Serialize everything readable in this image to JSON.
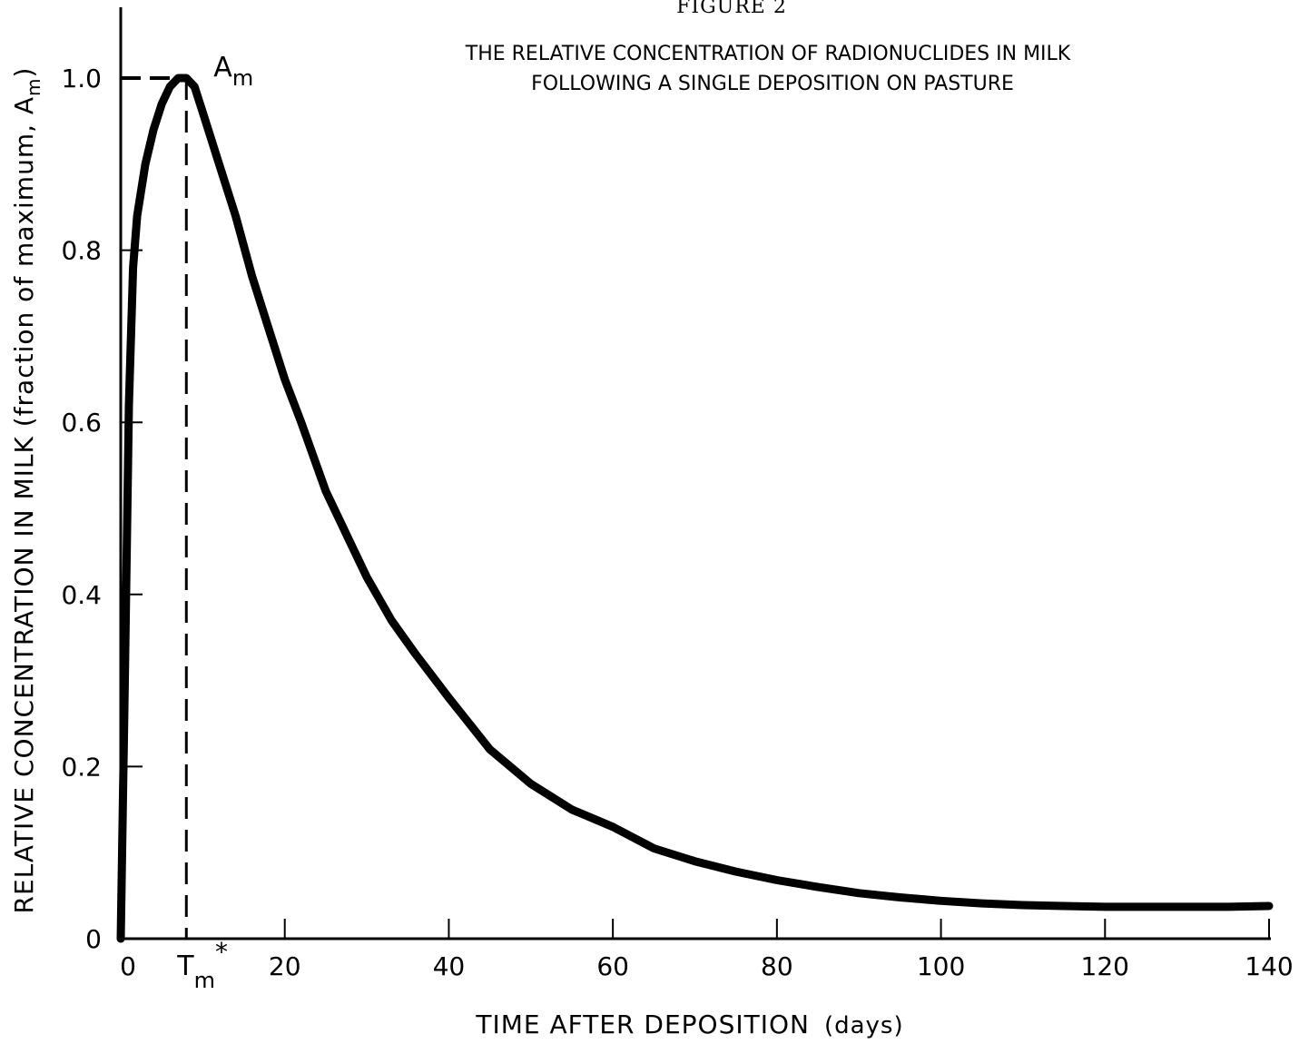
{
  "figure_label": "FIGURE 2",
  "chart_data": {
    "type": "line",
    "title_line1": "THE RELATIVE CONCENTRATION OF RADIONUCLIDES IN MILK",
    "title_line2": "FOLLOWING A SINGLE DEPOSITION ON PASTURE",
    "xlabel": "TIME AFTER DEPOSITION",
    "xlabel_unit": "(days)",
    "ylabel_main": "RELATIVE CONCENTRATION IN MILK (fraction of maximum, A",
    "ylabel_sub": "m",
    "ylabel_close": ")",
    "xlim": [
      0,
      140
    ],
    "ylim": [
      0,
      1.1
    ],
    "x_ticks": [
      0,
      20,
      40,
      60,
      80,
      100,
      120,
      140
    ],
    "x_tick_labels": [
      "0",
      "20",
      "40",
      "60",
      "80",
      "100",
      "120",
      "140"
    ],
    "y_ticks": [
      0,
      0.2,
      0.4,
      0.6,
      0.8,
      1.0
    ],
    "y_tick_labels": [
      "0",
      "0.2",
      "0.4",
      "0.6",
      "0.8",
      "1.0"
    ],
    "grid": false,
    "peak_marker": {
      "x": 8,
      "y": 1.0,
      "label": "A",
      "label_sub": "m"
    },
    "tm_marker": {
      "x": 8,
      "label": "T",
      "label_sub": "m",
      "label_sup": "*"
    },
    "series": [
      {
        "x": [
          0,
          0.5,
          1,
          1.5,
          2,
          3,
          4,
          5,
          6,
          7,
          8,
          9,
          10,
          12,
          14,
          16,
          18,
          20,
          22,
          25,
          28,
          30,
          33,
          36,
          40,
          45,
          50,
          55,
          60,
          65,
          70,
          75,
          80,
          85,
          90,
          95,
          100,
          105,
          110,
          115,
          120,
          125,
          130,
          135,
          140
        ],
        "y": [
          0.0,
          0.3,
          0.62,
          0.78,
          0.84,
          0.9,
          0.94,
          0.97,
          0.99,
          1.0,
          1.0,
          0.99,
          0.96,
          0.9,
          0.84,
          0.77,
          0.71,
          0.65,
          0.6,
          0.52,
          0.46,
          0.42,
          0.37,
          0.33,
          0.28,
          0.22,
          0.18,
          0.15,
          0.13,
          0.105,
          0.09,
          0.078,
          0.068,
          0.06,
          0.053,
          0.048,
          0.044,
          0.041,
          0.039,
          0.038,
          0.037,
          0.037,
          0.037,
          0.037,
          0.038
        ]
      }
    ]
  }
}
